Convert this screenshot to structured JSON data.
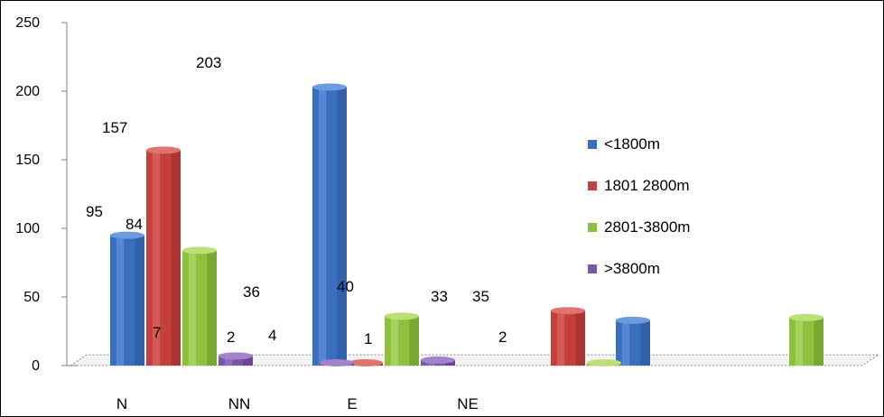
{
  "chart_data": {
    "type": "bar",
    "title": "",
    "xlabel": "",
    "ylabel": "",
    "ylim": [
      0,
      250
    ],
    "yticks": [
      "0",
      "50",
      "100",
      "150",
      "200",
      "250"
    ],
    "grid": false,
    "legend_placement": "right",
    "categories": [
      "N",
      "NN",
      "E",
      "NE",
      "",
      "",
      "",
      ""
    ],
    "series": [
      {
        "name": "<1800m",
        "color": "#3a6fc0",
        "dark": "#25508f",
        "light": "#6d9be0",
        "values": [
          95,
          0,
          203,
          0,
          0,
          33,
          0,
          0
        ]
      },
      {
        "name": "1801 2800m",
        "color": "#c4403d",
        "dark": "#8f2523",
        "light": "#e07270",
        "values": [
          157,
          0,
          2,
          0,
          40,
          0,
          0,
          0
        ]
      },
      {
        "name": "2801-3800m",
        "color": "#8fbf3c",
        "dark": "#5f8a1f",
        "light": "#bbe07a",
        "values": [
          84,
          0,
          36,
          0,
          2,
          0,
          35,
          0
        ]
      },
      {
        "name": ">3800m",
        "color": "#7a56a8",
        "dark": "#523477",
        "light": "#a384cc",
        "values": [
          7,
          2,
          4,
          0,
          0,
          0,
          0,
          1
        ]
      }
    ],
    "data_labels": [
      "203",
      "157",
      "95",
      "84",
      "36",
      "7",
      "2",
      "4",
      "40",
      "1",
      "33",
      "35",
      "2"
    ]
  }
}
